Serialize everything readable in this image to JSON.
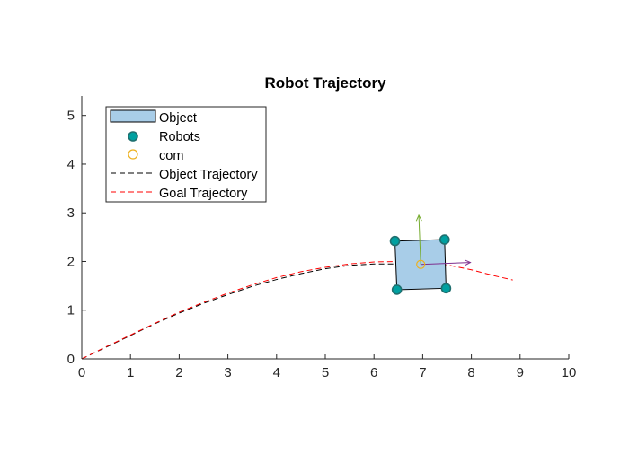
{
  "chart_data": {
    "type": "line",
    "title": "Robot Trajectory",
    "xlabel": "",
    "ylabel": "",
    "xlim": [
      0,
      10
    ],
    "ylim": [
      0,
      5.4
    ],
    "xticks": [
      0,
      1,
      2,
      3,
      4,
      5,
      6,
      7,
      8,
      9,
      10
    ],
    "yticks": [
      0,
      1,
      2,
      3,
      4,
      5
    ],
    "grid": false,
    "legend_position": "top-left",
    "legend": [
      {
        "label": "Object",
        "kind": "patch"
      },
      {
        "label": "Robots",
        "kind": "marker"
      },
      {
        "label": "com",
        "kind": "marker"
      },
      {
        "label": "Object Trajectory",
        "kind": "line"
      },
      {
        "label": "Goal Trajectory",
        "kind": "line"
      }
    ],
    "series": [
      {
        "name": "Object Trajectory",
        "style": "dashed",
        "color": "#000000",
        "x": [
          0,
          0.5,
          1,
          1.5,
          2,
          2.5,
          3,
          3.5,
          4,
          4.5,
          5,
          5.5,
          6,
          6.5,
          6.9
        ],
        "y": [
          0,
          0.24,
          0.48,
          0.72,
          0.94,
          1.14,
          1.32,
          1.49,
          1.63,
          1.75,
          1.85,
          1.92,
          1.95,
          1.95,
          1.93
        ]
      },
      {
        "name": "Goal Trajectory",
        "style": "dashed",
        "color": "#ff0000",
        "x": [
          0,
          0.5,
          1,
          1.5,
          2,
          2.5,
          3,
          3.5,
          4,
          4.5,
          5,
          5.5,
          6,
          6.5,
          7,
          7.5,
          8,
          8.5,
          8.85
        ],
        "y": [
          0,
          0.25,
          0.49,
          0.73,
          0.96,
          1.16,
          1.35,
          1.52,
          1.67,
          1.79,
          1.88,
          1.95,
          1.99,
          2.0,
          1.98,
          1.93,
          1.83,
          1.7,
          1.62
        ]
      }
    ],
    "object": {
      "name": "Object",
      "fill": "#a8cde8",
      "edge": "#000000",
      "corners": [
        [
          6.43,
          2.42
        ],
        [
          7.45,
          2.45
        ],
        [
          7.48,
          1.45
        ],
        [
          6.47,
          1.42
        ]
      ]
    },
    "robots": {
      "name": "Robots",
      "color": "#00a0a0",
      "points": [
        [
          6.43,
          2.42
        ],
        [
          7.45,
          2.45
        ],
        [
          7.48,
          1.45
        ],
        [
          6.47,
          1.42
        ]
      ]
    },
    "com": {
      "name": "com",
      "color": "#edb120",
      "point": [
        6.96,
        1.94
      ]
    },
    "frame_arrows": [
      {
        "name": "x-axis-arrow",
        "color": "#7e2f8e",
        "from": [
          6.96,
          1.94
        ],
        "to": [
          7.98,
          1.98
        ]
      },
      {
        "name": "y-axis-arrow",
        "color": "#77ac30",
        "from": [
          6.96,
          1.94
        ],
        "to": [
          6.92,
          2.95
        ]
      }
    ]
  }
}
